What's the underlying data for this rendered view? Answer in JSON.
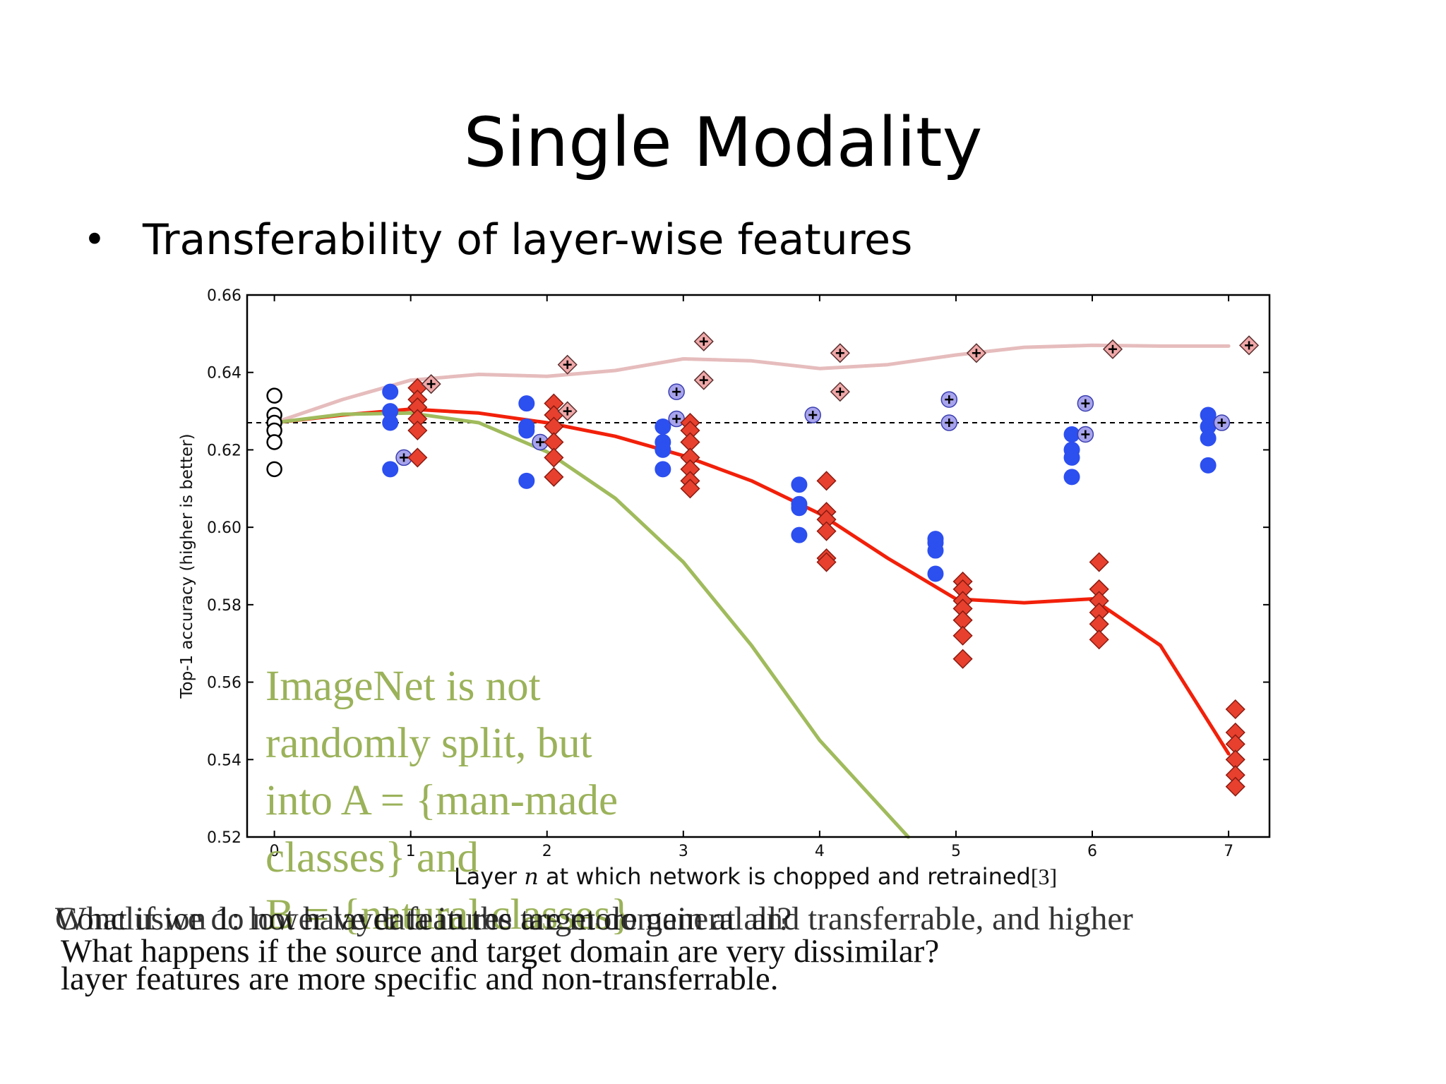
{
  "slide": {
    "title": "Single Modality",
    "bullet": "Transferability of layer-wise features"
  },
  "chart_data": {
    "type": "scatter",
    "xlabel_prefix": "Layer ",
    "xlabel_var": "n",
    "xlabel_suffix": " at which network is chopped and retrained",
    "citation": "[3]",
    "ylabel": "Top-1 accuracy (higher is better)",
    "xlim": [
      -0.2,
      7.3
    ],
    "ylim": [
      0.52,
      0.66
    ],
    "xticks": [
      0,
      1,
      2,
      3,
      4,
      5,
      6,
      7
    ],
    "yticks": [
      0.52,
      0.54,
      0.56,
      0.58,
      0.6,
      0.62,
      0.64,
      0.66
    ],
    "baseline": 0.627,
    "series": [
      {
        "role": "baseB",
        "color": "#ffffff",
        "stroke": "#000000",
        "marker": "circle-open",
        "points": [
          [
            0,
            0.634
          ],
          [
            0,
            0.629
          ],
          [
            0,
            0.627
          ],
          [
            0,
            0.625
          ],
          [
            0,
            0.622
          ],
          [
            0,
            0.615
          ]
        ]
      },
      {
        "role": "selffer",
        "color": "#2c4ff0",
        "stroke": "#2c4ff0",
        "marker": "circle",
        "points": [
          [
            0.85,
            0.635
          ],
          [
            0.85,
            0.63
          ],
          [
            0.85,
            0.627
          ],
          [
            0.85,
            0.615
          ],
          [
            1.85,
            0.632
          ],
          [
            1.85,
            0.626
          ],
          [
            1.85,
            0.625
          ],
          [
            1.85,
            0.612
          ],
          [
            2.85,
            0.626
          ],
          [
            2.85,
            0.622
          ],
          [
            2.85,
            0.62
          ],
          [
            2.85,
            0.615
          ],
          [
            3.85,
            0.611
          ],
          [
            3.85,
            0.606
          ],
          [
            3.85,
            0.605
          ],
          [
            3.85,
            0.598
          ],
          [
            4.85,
            0.597
          ],
          [
            4.85,
            0.596
          ],
          [
            4.85,
            0.594
          ],
          [
            4.85,
            0.588
          ],
          [
            5.85,
            0.624
          ],
          [
            5.85,
            0.62
          ],
          [
            5.85,
            0.618
          ],
          [
            5.85,
            0.613
          ],
          [
            6.85,
            0.629
          ],
          [
            6.85,
            0.626
          ],
          [
            6.85,
            0.623
          ],
          [
            6.85,
            0.616
          ]
        ]
      },
      {
        "role": "selffer-ft",
        "color": "#a8a4ec",
        "stroke": "#3b3fb0",
        "marker": "circle-plus",
        "points": [
          [
            0.95,
            0.618
          ],
          [
            1.95,
            0.622
          ],
          [
            2.95,
            0.628
          ],
          [
            2.95,
            0.635
          ],
          [
            3.95,
            0.629
          ],
          [
            4.95,
            0.633
          ],
          [
            4.95,
            0.627
          ],
          [
            5.95,
            0.632
          ],
          [
            5.95,
            0.624
          ],
          [
            6.95,
            0.627
          ]
        ]
      },
      {
        "role": "transfer",
        "color": "#e8402e",
        "stroke": "#8a1a10",
        "marker": "diamond",
        "points": [
          [
            1.05,
            0.636
          ],
          [
            1.05,
            0.633
          ],
          [
            1.05,
            0.631
          ],
          [
            1.05,
            0.628
          ],
          [
            1.05,
            0.625
          ],
          [
            1.05,
            0.618
          ],
          [
            2.05,
            0.632
          ],
          [
            2.05,
            0.629
          ],
          [
            2.05,
            0.626
          ],
          [
            2.05,
            0.622
          ],
          [
            2.05,
            0.618
          ],
          [
            2.05,
            0.613
          ],
          [
            3.05,
            0.627
          ],
          [
            3.05,
            0.625
          ],
          [
            3.05,
            0.622
          ],
          [
            3.05,
            0.618
          ],
          [
            3.05,
            0.615
          ],
          [
            3.05,
            0.612
          ],
          [
            3.05,
            0.61
          ],
          [
            4.05,
            0.612
          ],
          [
            4.05,
            0.604
          ],
          [
            4.05,
            0.602
          ],
          [
            4.05,
            0.599
          ],
          [
            4.05,
            0.592
          ],
          [
            4.05,
            0.591
          ],
          [
            5.05,
            0.586
          ],
          [
            5.05,
            0.584
          ],
          [
            5.05,
            0.581
          ],
          [
            5.05,
            0.579
          ],
          [
            5.05,
            0.576
          ],
          [
            5.05,
            0.572
          ],
          [
            5.05,
            0.566
          ],
          [
            6.05,
            0.591
          ],
          [
            6.05,
            0.584
          ],
          [
            6.05,
            0.581
          ],
          [
            6.05,
            0.578
          ],
          [
            6.05,
            0.575
          ],
          [
            6.05,
            0.571
          ],
          [
            7.05,
            0.553
          ],
          [
            7.05,
            0.547
          ],
          [
            7.05,
            0.544
          ],
          [
            7.05,
            0.54
          ],
          [
            7.05,
            0.536
          ],
          [
            7.05,
            0.533
          ]
        ]
      },
      {
        "role": "transfer-ft",
        "color": "#f0a8a8",
        "stroke": "#5a3030",
        "marker": "diamond-plus",
        "points": [
          [
            1.15,
            0.637
          ],
          [
            2.15,
            0.642
          ],
          [
            2.15,
            0.63
          ],
          [
            3.15,
            0.648
          ],
          [
            3.15,
            0.638
          ],
          [
            4.15,
            0.645
          ],
          [
            4.15,
            0.635
          ],
          [
            5.15,
            0.645
          ],
          [
            6.15,
            0.646
          ],
          [
            7.15,
            0.647
          ]
        ]
      }
    ],
    "curves": [
      {
        "role": "transfer-trend",
        "color": "#f2200a",
        "width": 5,
        "points": [
          [
            0,
            0.627
          ],
          [
            0.5,
            0.629
          ],
          [
            1,
            0.6305
          ],
          [
            1.5,
            0.6295
          ],
          [
            2,
            0.627
          ],
          [
            2.5,
            0.6235
          ],
          [
            3,
            0.6185
          ],
          [
            3.5,
            0.612
          ],
          [
            4,
            0.6035
          ],
          [
            4.5,
            0.592
          ],
          [
            5,
            0.5815
          ],
          [
            5.5,
            0.5805
          ],
          [
            6,
            0.5815
          ],
          [
            6.5,
            0.5695
          ],
          [
            7,
            0.5415
          ]
        ]
      },
      {
        "role": "selffer-trend",
        "color": "#e6bcbc",
        "width": 5,
        "points": [
          [
            0,
            0.627
          ],
          [
            0.5,
            0.633
          ],
          [
            1,
            0.638
          ],
          [
            1.5,
            0.6395
          ],
          [
            2,
            0.639
          ],
          [
            2.5,
            0.6405
          ],
          [
            3,
            0.6435
          ],
          [
            3.5,
            0.643
          ],
          [
            4,
            0.641
          ],
          [
            4.5,
            0.642
          ],
          [
            5,
            0.6445
          ],
          [
            5.5,
            0.6465
          ],
          [
            6,
            0.647
          ],
          [
            6.5,
            0.6468
          ],
          [
            7,
            0.6468
          ]
        ]
      },
      {
        "role": "dissimilar-trend",
        "color": "#a0bb5c",
        "width": 5,
        "points": [
          [
            0,
            0.627
          ],
          [
            0.5,
            0.6292
          ],
          [
            1,
            0.6295
          ],
          [
            1.5,
            0.627
          ],
          [
            2,
            0.6195
          ],
          [
            2.5,
            0.6075
          ],
          [
            3,
            0.591
          ],
          [
            3.5,
            0.5695
          ],
          [
            4,
            0.545
          ],
          [
            4.65,
            0.52
          ]
        ]
      }
    ]
  },
  "annotation": {
    "lines": [
      "ImageNet is not",
      "randomly split, but",
      "into A = {man-made",
      "classes} and",
      "B = {natural classes}"
    ]
  },
  "footer": {
    "question_1": "What if we do not have data in the target domain at all?",
    "conclusion_1": "Conclusion 1: lower layer features are more general and transferrable, and higher",
    "question_2": "What happens if the source and target domain are very dissimilar?",
    "conclusion_2": "layer features are more specific and non-transferrable."
  }
}
